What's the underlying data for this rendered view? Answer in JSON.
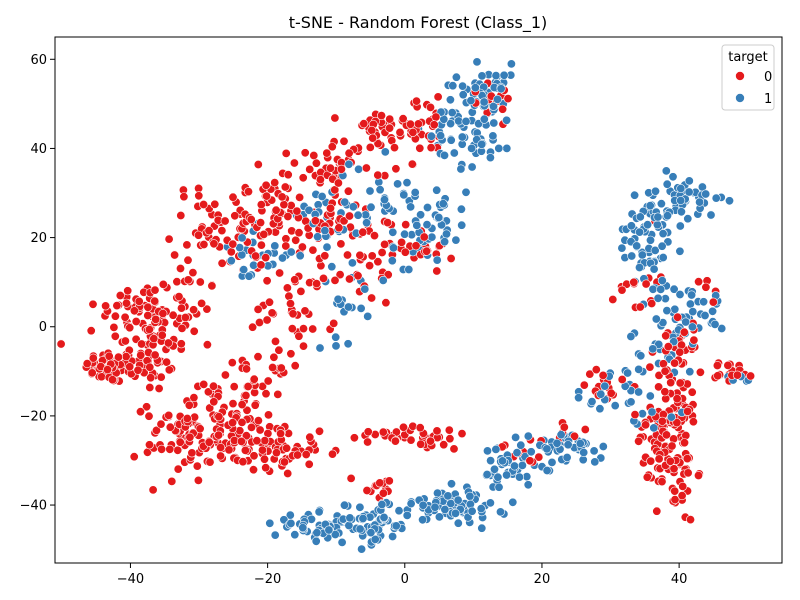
{
  "chart_data": {
    "type": "scatter",
    "title": "t-SNE - Random Forest (Class_1)",
    "xlabel": "",
    "ylabel": "",
    "xlim": [
      -51,
      55
    ],
    "ylim": [
      -53,
      65
    ],
    "xticks": [
      -40,
      -20,
      0,
      20,
      40
    ],
    "yticks": [
      -40,
      -20,
      0,
      20,
      40,
      60
    ],
    "xtick_labels": [
      "−40",
      "−20",
      "0",
      "20",
      "40"
    ],
    "ytick_labels": [
      "−40",
      "−20",
      "0",
      "20",
      "40",
      "60"
    ],
    "grid": false,
    "legend": {
      "title": "target",
      "placement": "top-right"
    },
    "series": [
      {
        "name": "0",
        "color": "#e41a1c",
        "clusters": [
          {
            "cx": -43.0,
            "cy": -9.0,
            "sx": 1.8,
            "sy": 1.8,
            "n": 55
          },
          {
            "cx": -38.0,
            "cy": -6.0,
            "sx": 3.0,
            "sy": 4.5,
            "n": 60
          },
          {
            "cx": -39.0,
            "cy": 4.0,
            "sx": 3.0,
            "sy": 3.5,
            "n": 45
          },
          {
            "cx": -33.0,
            "cy": 3.0,
            "sx": 3.0,
            "sy": 5.0,
            "n": 45
          },
          {
            "cx": -32.0,
            "cy": -25.0,
            "sx": 3.0,
            "sy": 5.0,
            "n": 70
          },
          {
            "cx": -28.0,
            "cy": -22.0,
            "sx": 3.0,
            "sy": 4.0,
            "n": 35
          },
          {
            "cx": -27.0,
            "cy": 22.0,
            "sx": 3.5,
            "sy": 5.0,
            "n": 55
          },
          {
            "cx": -21.0,
            "cy": 25.0,
            "sx": 3.0,
            "sy": 4.5,
            "n": 45
          },
          {
            "cx": -22.0,
            "cy": -14.0,
            "sx": 2.5,
            "sy": 4.0,
            "n": 45
          },
          {
            "cx": -21.0,
            "cy": -27.0,
            "sx": 4.0,
            "sy": 3.0,
            "n": 55
          },
          {
            "cx": -16.0,
            "cy": 5.0,
            "sx": 3.0,
            "sy": 5.0,
            "n": 40
          },
          {
            "cx": -13.0,
            "cy": 24.0,
            "sx": 3.5,
            "sy": 4.5,
            "n": 50
          },
          {
            "cx": -9.0,
            "cy": 37.0,
            "sx": 3.5,
            "sy": 3.0,
            "n": 45
          },
          {
            "cx": -6.0,
            "cy": 15.0,
            "sx": 3.0,
            "sy": 5.0,
            "n": 35
          },
          {
            "cx": -3.0,
            "cy": 44.0,
            "sx": 3.0,
            "sy": 2.5,
            "n": 35
          },
          {
            "cx": 3.0,
            "cy": 45.0,
            "sx": 2.5,
            "sy": 3.0,
            "n": 25
          },
          {
            "cx": 2.0,
            "cy": 18.0,
            "sx": 2.5,
            "sy": 3.0,
            "n": 20
          },
          {
            "cx": -15.0,
            "cy": -28.0,
            "sx": 3.0,
            "sy": 2.0,
            "n": 25
          },
          {
            "cx": -3.0,
            "cy": -25.0,
            "sx": 3.0,
            "sy": 1.0,
            "n": 20
          },
          {
            "cx": 4.0,
            "cy": -25.0,
            "sx": 2.5,
            "sy": 1.5,
            "n": 20
          },
          {
            "cx": -4.0,
            "cy": -36.0,
            "sx": 1.5,
            "sy": 2.0,
            "n": 15
          },
          {
            "cx": 12.0,
            "cy": 52.0,
            "sx": 2.5,
            "sy": 2.5,
            "n": 15
          },
          {
            "cx": 17.0,
            "cy": -29.0,
            "sx": 1.5,
            "sy": 2.0,
            "n": 10
          },
          {
            "cx": 23.0,
            "cy": -24.0,
            "sx": 1.5,
            "sy": 1.5,
            "n": 10
          },
          {
            "cx": 30.0,
            "cy": -13.0,
            "sx": 2.0,
            "sy": 3.0,
            "n": 15
          },
          {
            "cx": 34.0,
            "cy": 10.0,
            "sx": 1.5,
            "sy": 4.0,
            "n": 15
          },
          {
            "cx": 37.0,
            "cy": -25.0,
            "sx": 1.5,
            "sy": 4.0,
            "n": 40
          },
          {
            "cx": 39.5,
            "cy": -32.0,
            "sx": 1.5,
            "sy": 6.0,
            "n": 55
          },
          {
            "cx": 40.0,
            "cy": -18.0,
            "sx": 1.5,
            "sy": 4.0,
            "n": 35
          },
          {
            "cx": 39.0,
            "cy": -8.0,
            "sx": 2.0,
            "sy": 3.0,
            "n": 20
          },
          {
            "cx": 41.0,
            "cy": -2.0,
            "sx": 2.0,
            "sy": 2.0,
            "n": 15
          },
          {
            "cx": 47.5,
            "cy": -10.0,
            "sx": 1.8,
            "sy": 1.2,
            "n": 20
          },
          {
            "cx": 44.0,
            "cy": 7.0,
            "sx": 1.0,
            "sy": 2.0,
            "n": 6
          }
        ]
      },
      {
        "name": "1",
        "color": "#377eb8",
        "clusters": [
          {
            "cx": 10.0,
            "cy": 45.0,
            "sx": 3.0,
            "sy": 4.5,
            "n": 70
          },
          {
            "cx": 12.0,
            "cy": 54.0,
            "sx": 2.5,
            "sy": 2.5,
            "n": 35
          },
          {
            "cx": 5.0,
            "cy": 24.0,
            "sx": 2.0,
            "sy": 4.0,
            "n": 30
          },
          {
            "cx": 1.0,
            "cy": 18.0,
            "sx": 1.5,
            "sy": 2.5,
            "n": 15
          },
          {
            "cx": -2.0,
            "cy": 30.0,
            "sx": 3.0,
            "sy": 4.0,
            "n": 25
          },
          {
            "cx": -10.0,
            "cy": 25.0,
            "sx": 3.0,
            "sy": 4.0,
            "n": 30
          },
          {
            "cx": -8.0,
            "cy": 5.0,
            "sx": 2.5,
            "sy": 4.0,
            "n": 20
          },
          {
            "cx": -22.0,
            "cy": 16.0,
            "sx": 3.0,
            "sy": 3.0,
            "n": 25
          },
          {
            "cx": -13.0,
            "cy": -45.0,
            "sx": 3.0,
            "sy": 1.5,
            "n": 45
          },
          {
            "cx": -5.0,
            "cy": -44.0,
            "sx": 3.0,
            "sy": 2.5,
            "n": 60
          },
          {
            "cx": 5.0,
            "cy": -40.0,
            "sx": 3.0,
            "sy": 1.8,
            "n": 45
          },
          {
            "cx": 10.0,
            "cy": -40.0,
            "sx": 2.5,
            "sy": 1.8,
            "n": 30
          },
          {
            "cx": 15.0,
            "cy": -32.0,
            "sx": 2.0,
            "sy": 3.0,
            "n": 45
          },
          {
            "cx": 24.0,
            "cy": -27.0,
            "sx": 2.5,
            "sy": 2.0,
            "n": 40
          },
          {
            "cx": 30.0,
            "cy": -15.0,
            "sx": 2.5,
            "sy": 3.0,
            "n": 20
          },
          {
            "cx": 35.0,
            "cy": 17.0,
            "sx": 2.0,
            "sy": 3.5,
            "n": 40
          },
          {
            "cx": 37.0,
            "cy": 26.0,
            "sx": 2.0,
            "sy": 2.5,
            "n": 35
          },
          {
            "cx": 41.0,
            "cy": 30.0,
            "sx": 2.5,
            "sy": 2.0,
            "n": 35
          },
          {
            "cx": 41.0,
            "cy": 4.0,
            "sx": 3.0,
            "sy": 3.0,
            "n": 40
          },
          {
            "cx": 38.0,
            "cy": -5.0,
            "sx": 2.5,
            "sy": 3.0,
            "n": 25
          },
          {
            "cx": 36.0,
            "cy": -18.0,
            "sx": 2.0,
            "sy": 2.0,
            "n": 10
          },
          {
            "cx": 49.0,
            "cy": -11.5,
            "sx": 1.0,
            "sy": 0.8,
            "n": 5
          }
        ]
      }
    ]
  }
}
